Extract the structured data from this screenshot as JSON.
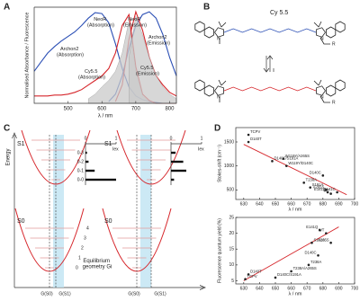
{
  "panels": [
    "A",
    "B",
    "C",
    "D"
  ],
  "chart_data": [
    {
      "type": "line",
      "x_label": "λ / nm",
      "y_label": "Normalised Absorbance / Fluorescence",
      "x": [
        400,
        420,
        440,
        460,
        480,
        500,
        520,
        540,
        560,
        580,
        600,
        620,
        640,
        660,
        680,
        700,
        720,
        740,
        760,
        780,
        800,
        820
      ],
      "xlim": [
        400,
        820
      ],
      "ylim": [
        0,
        1.05
      ],
      "xticks": [
        500,
        600,
        700,
        800
      ],
      "series": [
        {
          "name": "Archon2 (Absorption)",
          "color": "#2b4fb5",
          "fill": false,
          "values": [
            0.35,
            0.45,
            0.55,
            0.62,
            0.68,
            0.73,
            0.78,
            0.85,
            0.93,
            0.99,
            0.98,
            0.88,
            0.65,
            0.38,
            0.18,
            0.08,
            0.04,
            0.02,
            0.01,
            0,
            0,
            0
          ]
        },
        {
          "name": "Archon2 (Emission)",
          "color": "#2b4fb5",
          "fill": false,
          "values": [
            null,
            null,
            null,
            null,
            null,
            null,
            null,
            null,
            null,
            null,
            null,
            0.02,
            0.1,
            0.3,
            0.6,
            0.85,
            0.97,
            1.0,
            0.93,
            0.75,
            0.5,
            0.3
          ]
        },
        {
          "name": "NeoR (Absorption)",
          "color": "#d6262b",
          "fill": false,
          "values": [
            0.08,
            0.08,
            0.08,
            0.09,
            0.09,
            0.1,
            0.12,
            0.15,
            0.2,
            0.25,
            0.3,
            0.38,
            0.55,
            0.85,
            0.97,
            0.4,
            0.1,
            0.03,
            0,
            0,
            0,
            0
          ]
        },
        {
          "name": "NeoR (Emission)",
          "color": "#d6262b",
          "fill": false,
          "values": [
            null,
            null,
            null,
            null,
            null,
            null,
            null,
            null,
            null,
            null,
            null,
            null,
            0.02,
            0.2,
            0.7,
            1.0,
            0.8,
            0.5,
            0.3,
            0.2,
            0.12,
            0.08
          ]
        },
        {
          "name": "Cy5.5 (Absorption)",
          "color": "#c9c9c9",
          "fill": true,
          "values": [
            null,
            null,
            null,
            null,
            null,
            null,
            null,
            null,
            0.05,
            0.1,
            0.18,
            0.25,
            0.35,
            0.55,
            0.9,
            0.35,
            0.08,
            0.02,
            null,
            null,
            null,
            null
          ]
        },
        {
          "name": "Cy5.5 (Emission)",
          "color": "#c9c9c9",
          "fill": true,
          "values": [
            null,
            null,
            null,
            null,
            null,
            null,
            null,
            null,
            null,
            null,
            null,
            null,
            null,
            null,
            0.5,
            0.95,
            0.75,
            0.5,
            0.3,
            0.18,
            0.1,
            0.05
          ]
        }
      ]
    },
    {
      "type": "scatter",
      "x_label": "λ / nm",
      "y_label": "Stokes-shift (cm⁻¹)",
      "color": "#222",
      "x": [
        633,
        633,
        648,
        655,
        657,
        680,
        668,
        672,
        682,
        689,
        685,
        683
      ],
      "values": [
        1650,
        1500,
        1100,
        1150,
        1000,
        800,
        650,
        550,
        500,
        450,
        420,
        450
      ],
      "labels": [
        "TCPV",
        "D140T",
        "D140C/S191A",
        "W119Y/A265S",
        "W119Y/D140C",
        "D140C",
        "T238A",
        "S191A",
        "A265S",
        "E141C",
        "WT",
        "E141Q"
      ],
      "trendline": {
        "x": [
          630,
          695
        ],
        "values": [
          1450,
          400
        ],
        "color": "#d6262b"
      },
      "xlim": [
        625,
        700
      ],
      "ylim": [
        300,
        1800
      ],
      "xticks": [
        630,
        640,
        650,
        660,
        670,
        680,
        690,
        700
      ],
      "yticks": [
        500,
        1000,
        1500
      ]
    },
    {
      "type": "scatter",
      "x_label": "λ / nm",
      "y_label": "Fluorescence quantum yield (%)",
      "color": "#222",
      "x": [
        631,
        633,
        650,
        660,
        671,
        677,
        673,
        685,
        678,
        682
      ],
      "values": [
        5.5,
        7,
        6,
        8,
        10,
        13,
        17,
        17,
        21,
        20
      ],
      "labels": [
        "TCPV",
        "D140T",
        "D140C/S191A",
        "T238A/A265S",
        "T238A",
        "D140C",
        "S191A",
        "A265S",
        "E141Q",
        "WT"
      ],
      "trendline": {
        "x": [
          630,
          690
        ],
        "values": [
          5,
          22
        ],
        "color": "#d6262b"
      },
      "xlim": [
        625,
        700
      ],
      "ylim": [
        4,
        25
      ],
      "xticks": [
        630,
        640,
        650,
        660,
        670,
        680,
        690,
        700
      ],
      "yticks": [
        5,
        10,
        15,
        20,
        25
      ]
    }
  ],
  "structure": {
    "name": "Cy 5.5",
    "substituent": "R",
    "atom": "N"
  },
  "energy_diagram": {
    "y_label": "Energy",
    "states": [
      "S1",
      "S0"
    ],
    "x_label": "Equilibrium geometry Gi",
    "coords": [
      "G(S0)",
      "G(S1)"
    ],
    "levels": [
      "4",
      "3",
      "2",
      "1",
      "0"
    ],
    "transitions": [
      "0-3",
      "0-2",
      "0-1",
      "0-0"
    ],
    "intensity_label": "Iex",
    "intensity_ticks": [
      0,
      1
    ],
    "diagrams": [
      {
        "intensities": [
          0.05,
          0.1,
          0.3,
          1.0
        ]
      },
      {
        "intensities": [
          0.15,
          0.4,
          0.5,
          0.1
        ]
      }
    ]
  }
}
